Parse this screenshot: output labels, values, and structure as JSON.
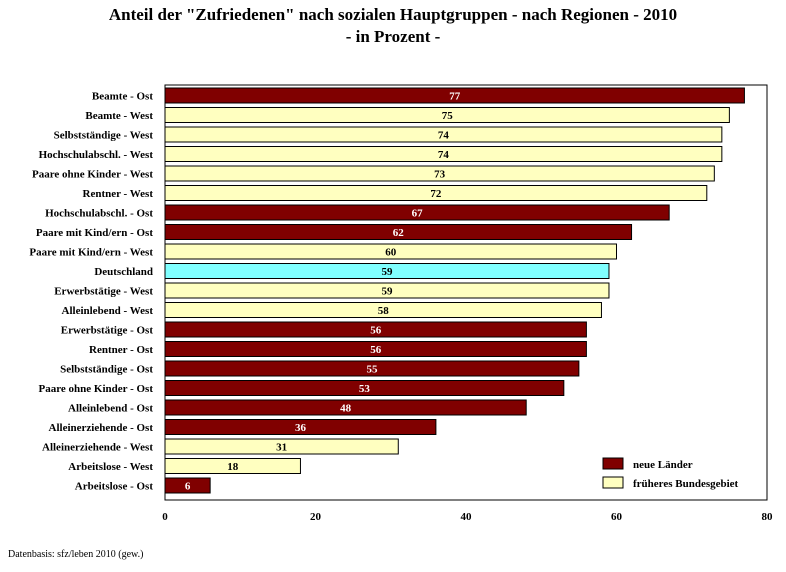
{
  "chart_data": {
    "type": "bar",
    "orientation": "horizontal",
    "title": "Anteil der \"Zufriedenen\" nach sozialen Hauptgruppen - nach Regionen - 2010",
    "subtitle": "- in Prozent -",
    "xlabel": "",
    "ylabel": "",
    "xlim": [
      0,
      80
    ],
    "xticks": [
      0,
      20,
      40,
      60,
      80
    ],
    "grid": false,
    "legend_position": "bottom-right",
    "legend": [
      {
        "key": "ost",
        "label": "neue Länder",
        "color": "#800000"
      },
      {
        "key": "west",
        "label": "früheres Bundesgebiet",
        "color": "#ffffc0"
      }
    ],
    "colors": {
      "ost": "#800000",
      "west": "#ffffc0",
      "total": "#80ffff"
    },
    "categories": [
      "Beamte - Ost",
      "Beamte - West",
      "Selbstständige - West",
      "Hochschulabschl. - West",
      "Paare ohne Kinder - West",
      "Rentner - West",
      "Hochschulabschl. - Ost",
      "Paare mit Kind/ern - Ost",
      "Paare mit Kind/ern - West",
      "Deutschland",
      "Erwerbstätige - West",
      "Alleinlebend - West",
      "Erwerbstätige - Ost",
      "Rentner - Ost",
      "Selbstständige - Ost",
      "Paare ohne Kinder - Ost",
      "Alleinlebend - Ost",
      "Alleinerziehende - Ost",
      "Alleinerziehende - West",
      "Arbeitslose - West",
      "Arbeitslose - Ost"
    ],
    "values": [
      77,
      75,
      74,
      74,
      73,
      72,
      67,
      62,
      60,
      59,
      59,
      58,
      56,
      56,
      55,
      53,
      48,
      36,
      31,
      18,
      6
    ],
    "groups": [
      "ost",
      "west",
      "west",
      "west",
      "west",
      "west",
      "ost",
      "ost",
      "west",
      "total",
      "west",
      "west",
      "ost",
      "ost",
      "ost",
      "ost",
      "ost",
      "ost",
      "west",
      "west",
      "ost"
    ]
  },
  "footer": {
    "source": "Datenbasis: sfz/leben 2010 (gew.)"
  }
}
